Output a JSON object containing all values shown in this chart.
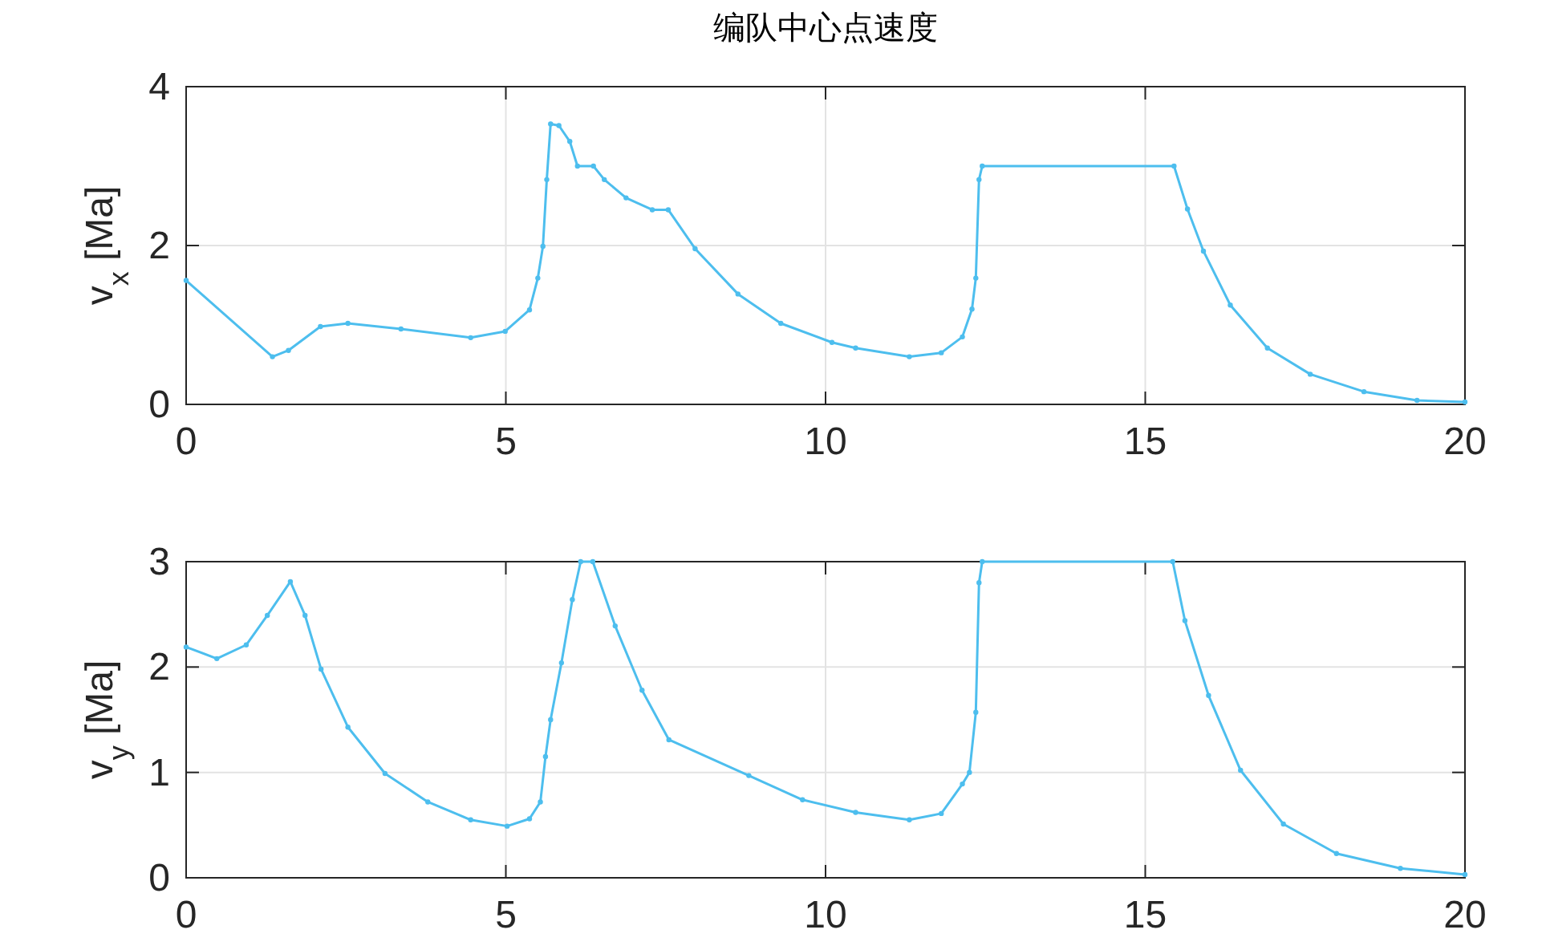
{
  "chart_data": [
    {
      "type": "line",
      "title": "编队中心点速度",
      "ylabel": "v$_{x}$ [Ma]",
      "grid": true,
      "marker": "circle",
      "line_style": "solid",
      "xlim": [
        0,
        20
      ],
      "xticks": [
        0,
        5,
        10,
        15,
        20
      ],
      "ylim": [
        0,
        4
      ],
      "yticks": [
        0,
        2,
        4
      ],
      "series": [
        {
          "color": "#4dbeee",
          "x": [
            0,
            1.35,
            1.6,
            2.1,
            2.53,
            3.36,
            4.45,
            4.99,
            5.37,
            5.5,
            5.58,
            5.64,
            5.7,
            5.83,
            6.0,
            6.12,
            6.37,
            6.54,
            6.88,
            7.29,
            7.54,
            7.96,
            8.63,
            9.3,
            10.1,
            10.47,
            11.31,
            11.81,
            12.14,
            12.29,
            12.35,
            12.4,
            12.45,
            15.45,
            15.66,
            15.91,
            16.33,
            16.91,
            17.58,
            18.42,
            19.25,
            20
          ],
          "values": [
            1.56,
            0.6,
            0.68,
            0.98,
            1.02,
            0.95,
            0.84,
            0.92,
            1.19,
            1.59,
            1.99,
            2.83,
            3.53,
            3.51,
            3.31,
            3.0,
            3.0,
            2.83,
            2.6,
            2.45,
            2.45,
            1.96,
            1.39,
            1.02,
            0.78,
            0.71,
            0.6,
            0.65,
            0.85,
            1.2,
            1.59,
            2.83,
            3.0,
            3.0,
            2.46,
            1.93,
            1.25,
            0.71,
            0.38,
            0.16,
            0.05,
            0.03
          ]
        }
      ]
    },
    {
      "type": "line",
      "ylabel": "v$_{y}$ [Ma]",
      "grid": true,
      "marker": "circle",
      "line_style": "solid",
      "xlim": [
        0,
        20
      ],
      "xticks": [
        0,
        5,
        10,
        15,
        20
      ],
      "ylim": [
        0,
        3
      ],
      "yticks": [
        0,
        1,
        2,
        3
      ],
      "series": [
        {
          "color": "#4dbeee",
          "x": [
            0,
            0.48,
            0.94,
            1.27,
            1.63,
            1.86,
            2.11,
            2.53,
            3.11,
            3.78,
            4.45,
            5.02,
            5.37,
            5.54,
            5.62,
            5.7,
            5.87,
            6.04,
            6.17,
            6.36,
            6.71,
            7.13,
            7.55,
            8.8,
            9.64,
            10.47,
            11.31,
            11.81,
            12.14,
            12.25,
            12.35,
            12.4,
            12.45,
            15.43,
            15.62,
            15.99,
            16.49,
            17.16,
            17.99,
            18.99,
            20
          ],
          "values": [
            2.19,
            2.08,
            2.21,
            2.49,
            2.81,
            2.49,
            1.98,
            1.43,
            0.99,
            0.72,
            0.55,
            0.49,
            0.56,
            0.72,
            1.15,
            1.5,
            2.04,
            2.64,
            3.0,
            3.0,
            2.39,
            1.78,
            1.31,
            0.97,
            0.74,
            0.62,
            0.55,
            0.61,
            0.89,
            1.0,
            1.57,
            2.8,
            3.0,
            3.0,
            2.44,
            1.73,
            1.02,
            0.51,
            0.23,
            0.09,
            0.03
          ]
        }
      ]
    }
  ]
}
